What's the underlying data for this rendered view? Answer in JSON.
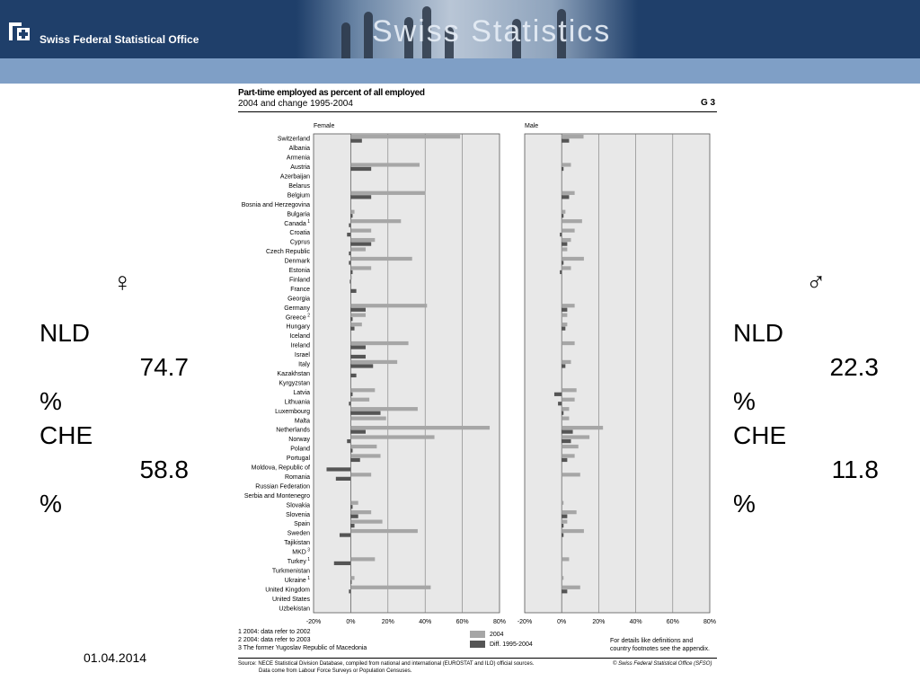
{
  "header": {
    "org_name": "Swiss Federal Statistical Office",
    "brand_title": "Swiss Statistics"
  },
  "left_panel": {
    "symbol": "♀",
    "lines": [
      {
        "country": "NLD",
        "value": "74.7",
        "unit": "%"
      },
      {
        "country": "CHE",
        "value": "58.8",
        "unit": "%"
      }
    ]
  },
  "right_panel": {
    "symbol": "♂",
    "lines": [
      {
        "country": "NLD",
        "value": "22.3",
        "unit": "%"
      },
      {
        "country": "CHE",
        "value": "11.8",
        "unit": "%"
      }
    ]
  },
  "footer": {
    "date": "01.04.2014"
  },
  "colors": {
    "bar_2004": "#a6a6a6",
    "bar_diff": "#555555",
    "plot_bg": "#e8e8e8",
    "header": "#1f3f6a",
    "band": "#7f9fc6"
  },
  "chart_data": {
    "type": "bar",
    "orientation": "horizontal",
    "title": "Part-time employed as percent of all employed",
    "subtitle": "2004 and change 1995-2004",
    "code": "G 3",
    "xlim": [
      -20,
      80
    ],
    "xticks": [
      "-20%",
      "0%",
      "20%",
      "40%",
      "60%",
      "80%"
    ],
    "panels": [
      "Female",
      "Male"
    ],
    "legend": [
      "2004",
      "Diff. 1995-2004"
    ],
    "categories": [
      "Switzerland",
      "Albania",
      "Armenia",
      "Austria",
      "Azerbaijan",
      "Belarus",
      "Belgium",
      "Bosnia and Herzegovina",
      "Bulgaria",
      "Canada",
      "Croatia",
      "Cyprus",
      "Czech Republic",
      "Denmark",
      "Estonia",
      "Finland",
      "France",
      "Georgia",
      "Germany",
      "Greece",
      "Hungary",
      "Iceland",
      "Ireland",
      "Israel",
      "Italy",
      "Kazakhstan",
      "Kyrgyzstan",
      "Latvia",
      "Lithuania",
      "Luxembourg",
      "Malta",
      "Netherlands",
      "Norway",
      "Poland",
      "Portugal",
      "Moldova, Republic of",
      "Romania",
      "Russian Federation",
      "Serbia and Montenegro",
      "Slovakia",
      "Slovenia",
      "Spain",
      "Sweden",
      "Tajikistan",
      "MKD",
      "Turkey",
      "Turkmenistan",
      "Ukraine",
      "United Kingdom",
      "United States",
      "Uzbekistan"
    ],
    "footnote_marks": {
      "Canada": "1",
      "Greece": "2",
      "MKD": "3",
      "Turkey": "1",
      "Ukraine": "1"
    },
    "series": [
      {
        "panel": "Female",
        "name": "2004",
        "values": [
          58.8,
          null,
          null,
          37,
          null,
          null,
          40,
          null,
          2,
          27,
          11,
          13,
          8,
          33,
          11,
          0.5,
          null,
          null,
          41,
          8,
          6,
          null,
          31,
          null,
          25,
          null,
          null,
          13,
          10,
          36,
          19,
          74.7,
          45,
          14,
          16,
          null,
          11,
          null,
          null,
          4,
          11,
          17,
          36,
          null,
          null,
          13,
          null,
          2,
          43,
          null,
          null
        ]
      },
      {
        "panel": "Female",
        "name": "Diff. 1995-2004",
        "values": [
          6,
          null,
          null,
          11,
          null,
          null,
          11,
          null,
          1,
          -1,
          -2,
          11,
          -1,
          -1,
          1,
          -0.5,
          3,
          null,
          8,
          1,
          2,
          null,
          8,
          8,
          12,
          3,
          null,
          1,
          -1,
          16,
          null,
          8,
          -2,
          1,
          5,
          -13,
          -8,
          null,
          null,
          1,
          4,
          2,
          -6,
          null,
          null,
          -9,
          null,
          0.5,
          -1,
          null,
          null
        ]
      },
      {
        "panel": "Male",
        "name": "2004",
        "values": [
          11.8,
          null,
          null,
          5,
          null,
          null,
          7,
          null,
          2,
          11,
          7,
          5,
          3,
          12,
          5,
          null,
          null,
          null,
          7,
          3,
          3,
          null,
          7,
          null,
          5,
          null,
          null,
          8,
          7,
          4,
          4,
          22.3,
          15,
          9,
          7,
          null,
          10,
          null,
          null,
          1,
          8,
          3,
          12,
          null,
          null,
          4,
          null,
          1,
          10,
          null,
          null
        ]
      },
      {
        "panel": "Male",
        "name": "Diff. 1995-2004",
        "values": [
          4,
          null,
          null,
          1,
          null,
          null,
          4,
          null,
          1,
          null,
          -1,
          3,
          null,
          1,
          -1,
          null,
          null,
          null,
          3,
          null,
          2,
          null,
          null,
          null,
          2,
          null,
          null,
          -4,
          -2,
          1,
          null,
          6,
          5,
          null,
          3,
          null,
          null,
          null,
          null,
          null,
          3,
          1,
          1,
          null,
          null,
          null,
          null,
          null,
          3,
          null,
          null
        ]
      }
    ],
    "footnotes": [
      "1  2004: data refer to 2002",
      "2  2004: data refer to 2003",
      "3  The former Yugoslav Republic of Macedonia"
    ],
    "details_note": [
      "For details like definitions and",
      "country footnotes see the appendix."
    ],
    "source": [
      "Source: NECE Statistical Division Database, compiled from national and international (EUROSTAT and ILO) official sources.",
      "Data come from Labour Force Surveys or Population Censuses."
    ],
    "copyright": "© Swiss Federal Statistical Office (SFSO)"
  }
}
